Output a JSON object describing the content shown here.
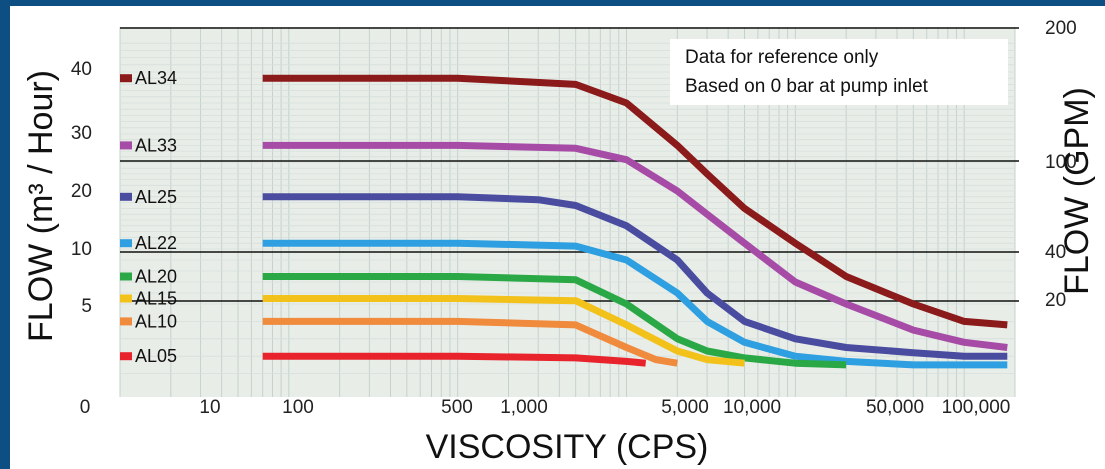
{
  "chart_data": {
    "type": "line",
    "xlabel": "VISCOSITY (CPS)",
    "ylabel_left": "FLOW (m³ / Hour)",
    "ylabel_right": "FLOW (GPM)",
    "x_scale": "log",
    "xlim": [
      1,
      200000
    ],
    "x_ticks": [
      "0",
      "10",
      "100",
      "500",
      "1,000",
      "5,000",
      "10,000",
      "50,000",
      "100,000"
    ],
    "x_tick_values": [
      1,
      10,
      100,
      500,
      1000,
      5000,
      10000,
      50000,
      100000
    ],
    "left_ticks": [
      "0",
      "5",
      "10",
      "20",
      "30",
      "40"
    ],
    "right_ticks": [
      "20",
      "40",
      "100",
      "200"
    ],
    "grid": true,
    "annotation": [
      "Data for reference only",
      "Based on 0 bar at pump inlet"
    ],
    "colors": {
      "AL34": "#8b1a1a",
      "AL33": "#a64ca6",
      "AL25": "#4a4ca0",
      "AL22": "#2e9fe0",
      "AL20": "#2aa845",
      "AL15": "#f2c21b",
      "AL10": "#f08a3c",
      "AL05": "#e8232c"
    },
    "series": [
      {
        "name": "AL34",
        "x": [
          7,
          100,
          500,
          1000,
          2000,
          3000,
          5000,
          10000,
          20000,
          50000,
          100000,
          180000
        ],
        "y": [
          39,
          39,
          38,
          35,
          28,
          23,
          17,
          11,
          7.5,
          5,
          4,
          3.8
        ]
      },
      {
        "name": "AL33",
        "x": [
          7,
          100,
          500,
          1000,
          2000,
          3000,
          5000,
          10000,
          20000,
          50000,
          100000,
          180000
        ],
        "y": [
          28,
          28,
          27.5,
          25.5,
          20,
          16,
          11,
          7,
          5,
          3.5,
          2.8,
          2.5
        ]
      },
      {
        "name": "AL25",
        "x": [
          7,
          100,
          300,
          500,
          1000,
          2000,
          3000,
          5000,
          10000,
          20000,
          50000,
          100000,
          180000
        ],
        "y": [
          19,
          19,
          18.5,
          17.5,
          14,
          9,
          6,
          4,
          3,
          2.5,
          2.2,
          2,
          2
        ]
      },
      {
        "name": "AL22",
        "x": [
          7,
          100,
          500,
          1000,
          2000,
          3000,
          5000,
          10000,
          20000,
          50000,
          100000,
          180000
        ],
        "y": [
          11,
          11,
          10.5,
          9,
          6,
          4,
          2.8,
          2,
          1.7,
          1.5,
          1.5,
          1.5
        ]
      },
      {
        "name": "AL20",
        "x": [
          7,
          100,
          500,
          1000,
          2000,
          3000,
          5000,
          10000,
          20000
        ],
        "y": [
          7.5,
          7.5,
          7.2,
          5,
          3,
          2.3,
          1.9,
          1.6,
          1.5
        ]
      },
      {
        "name": "AL15",
        "x": [
          7,
          100,
          500,
          1000,
          2000,
          3000,
          5000
        ],
        "y": [
          5.5,
          5.5,
          5.3,
          3.8,
          2.3,
          1.8,
          1.6
        ]
      },
      {
        "name": "AL10",
        "x": [
          7,
          100,
          500,
          1000,
          1500,
          2000
        ],
        "y": [
          4,
          4,
          3.8,
          2.5,
          1.8,
          1.6
        ]
      },
      {
        "name": "AL05",
        "x": [
          7,
          100,
          500,
          1000,
          1300
        ],
        "y": [
          2,
          2,
          1.9,
          1.7,
          1.6
        ]
      }
    ]
  }
}
